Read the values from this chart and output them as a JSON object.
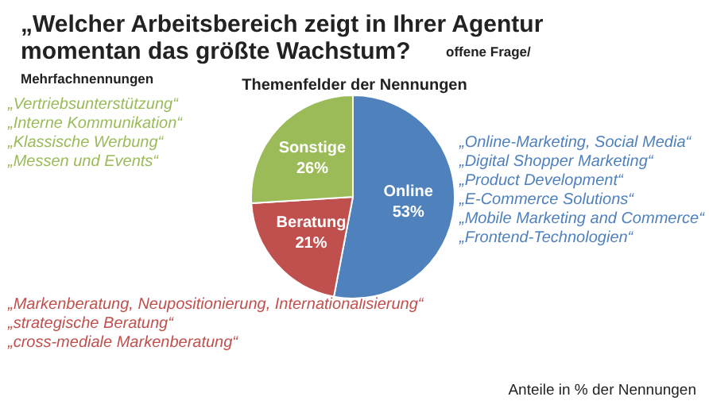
{
  "chart_data": {
    "type": "pie",
    "title": "„Welcher Arbeitsbereich zeigt in Ihrer Agentur momentan das größte Wachstum?",
    "subtitle": "Themenfelder der Nennungen",
    "categories": [
      "Online",
      "Beratung",
      "Sonstige"
    ],
    "values": [
      53,
      21,
      26
    ],
    "value_labels": [
      "53%",
      "21%",
      "26%"
    ],
    "colors": [
      "#4f81bd",
      "#c0504d",
      "#9bbb59"
    ],
    "legend": false,
    "annotations": [
      "offene Frage/ Mehrfachnennungen",
      "„Vertriebsunterstützung“\n„Interne Kommunikation“\n„Klassische Werbung“\n„Messen und Events“",
      "„Online-Marketing, Social Media“\n„Digital Shopper Marketing“\n„Product Development“\n„E-Commerce Solutions“\n„Mobile Marketing and Commerce“\n„Frontend-Technologien“",
      "„Markenberatung, Neupositionierung, Internationalisierung“\n„strategische Beratung“\n„cross-mediale Markenberatung“",
      "Anteile in % der Nennungen"
    ]
  }
}
